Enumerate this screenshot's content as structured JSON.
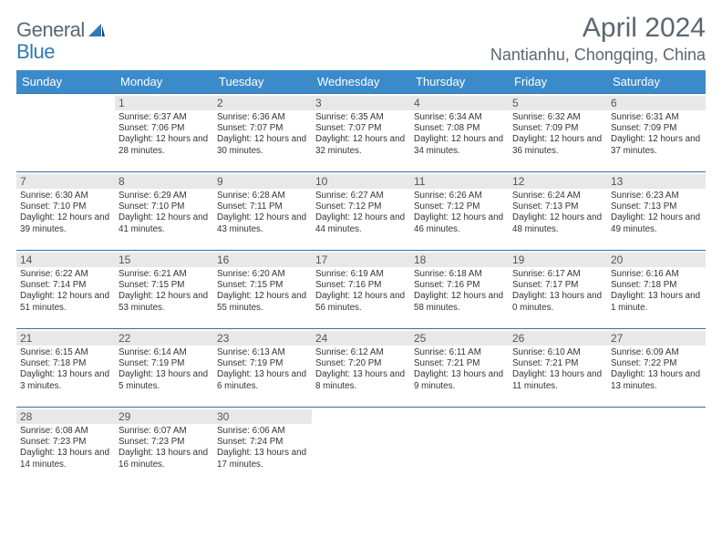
{
  "logo": {
    "text1": "General",
    "text2": "Blue"
  },
  "title": "April 2024",
  "location": "Nantianhu, Chongqing, China",
  "colors": {
    "header_bg": "#3b8bca",
    "header_text": "#ffffff",
    "rule": "#2f6fa8",
    "daynum_bg": "#e8e8e8",
    "text": "#333333",
    "title_text": "#5a6771",
    "accent": "#2f78bc"
  },
  "day_headers": [
    "Sunday",
    "Monday",
    "Tuesday",
    "Wednesday",
    "Thursday",
    "Friday",
    "Saturday"
  ],
  "weeks": [
    [
      {
        "n": "",
        "sr": "",
        "ss": "",
        "dl": ""
      },
      {
        "n": "1",
        "sr": "Sunrise: 6:37 AM",
        "ss": "Sunset: 7:06 PM",
        "dl": "Daylight: 12 hours and 28 minutes."
      },
      {
        "n": "2",
        "sr": "Sunrise: 6:36 AM",
        "ss": "Sunset: 7:07 PM",
        "dl": "Daylight: 12 hours and 30 minutes."
      },
      {
        "n": "3",
        "sr": "Sunrise: 6:35 AM",
        "ss": "Sunset: 7:07 PM",
        "dl": "Daylight: 12 hours and 32 minutes."
      },
      {
        "n": "4",
        "sr": "Sunrise: 6:34 AM",
        "ss": "Sunset: 7:08 PM",
        "dl": "Daylight: 12 hours and 34 minutes."
      },
      {
        "n": "5",
        "sr": "Sunrise: 6:32 AM",
        "ss": "Sunset: 7:09 PM",
        "dl": "Daylight: 12 hours and 36 minutes."
      },
      {
        "n": "6",
        "sr": "Sunrise: 6:31 AM",
        "ss": "Sunset: 7:09 PM",
        "dl": "Daylight: 12 hours and 37 minutes."
      }
    ],
    [
      {
        "n": "7",
        "sr": "Sunrise: 6:30 AM",
        "ss": "Sunset: 7:10 PM",
        "dl": "Daylight: 12 hours and 39 minutes."
      },
      {
        "n": "8",
        "sr": "Sunrise: 6:29 AM",
        "ss": "Sunset: 7:10 PM",
        "dl": "Daylight: 12 hours and 41 minutes."
      },
      {
        "n": "9",
        "sr": "Sunrise: 6:28 AM",
        "ss": "Sunset: 7:11 PM",
        "dl": "Daylight: 12 hours and 43 minutes."
      },
      {
        "n": "10",
        "sr": "Sunrise: 6:27 AM",
        "ss": "Sunset: 7:12 PM",
        "dl": "Daylight: 12 hours and 44 minutes."
      },
      {
        "n": "11",
        "sr": "Sunrise: 6:26 AM",
        "ss": "Sunset: 7:12 PM",
        "dl": "Daylight: 12 hours and 46 minutes."
      },
      {
        "n": "12",
        "sr": "Sunrise: 6:24 AM",
        "ss": "Sunset: 7:13 PM",
        "dl": "Daylight: 12 hours and 48 minutes."
      },
      {
        "n": "13",
        "sr": "Sunrise: 6:23 AM",
        "ss": "Sunset: 7:13 PM",
        "dl": "Daylight: 12 hours and 49 minutes."
      }
    ],
    [
      {
        "n": "14",
        "sr": "Sunrise: 6:22 AM",
        "ss": "Sunset: 7:14 PM",
        "dl": "Daylight: 12 hours and 51 minutes."
      },
      {
        "n": "15",
        "sr": "Sunrise: 6:21 AM",
        "ss": "Sunset: 7:15 PM",
        "dl": "Daylight: 12 hours and 53 minutes."
      },
      {
        "n": "16",
        "sr": "Sunrise: 6:20 AM",
        "ss": "Sunset: 7:15 PM",
        "dl": "Daylight: 12 hours and 55 minutes."
      },
      {
        "n": "17",
        "sr": "Sunrise: 6:19 AM",
        "ss": "Sunset: 7:16 PM",
        "dl": "Daylight: 12 hours and 56 minutes."
      },
      {
        "n": "18",
        "sr": "Sunrise: 6:18 AM",
        "ss": "Sunset: 7:16 PM",
        "dl": "Daylight: 12 hours and 58 minutes."
      },
      {
        "n": "19",
        "sr": "Sunrise: 6:17 AM",
        "ss": "Sunset: 7:17 PM",
        "dl": "Daylight: 13 hours and 0 minutes."
      },
      {
        "n": "20",
        "sr": "Sunrise: 6:16 AM",
        "ss": "Sunset: 7:18 PM",
        "dl": "Daylight: 13 hours and 1 minute."
      }
    ],
    [
      {
        "n": "21",
        "sr": "Sunrise: 6:15 AM",
        "ss": "Sunset: 7:18 PM",
        "dl": "Daylight: 13 hours and 3 minutes."
      },
      {
        "n": "22",
        "sr": "Sunrise: 6:14 AM",
        "ss": "Sunset: 7:19 PM",
        "dl": "Daylight: 13 hours and 5 minutes."
      },
      {
        "n": "23",
        "sr": "Sunrise: 6:13 AM",
        "ss": "Sunset: 7:19 PM",
        "dl": "Daylight: 13 hours and 6 minutes."
      },
      {
        "n": "24",
        "sr": "Sunrise: 6:12 AM",
        "ss": "Sunset: 7:20 PM",
        "dl": "Daylight: 13 hours and 8 minutes."
      },
      {
        "n": "25",
        "sr": "Sunrise: 6:11 AM",
        "ss": "Sunset: 7:21 PM",
        "dl": "Daylight: 13 hours and 9 minutes."
      },
      {
        "n": "26",
        "sr": "Sunrise: 6:10 AM",
        "ss": "Sunset: 7:21 PM",
        "dl": "Daylight: 13 hours and 11 minutes."
      },
      {
        "n": "27",
        "sr": "Sunrise: 6:09 AM",
        "ss": "Sunset: 7:22 PM",
        "dl": "Daylight: 13 hours and 13 minutes."
      }
    ],
    [
      {
        "n": "28",
        "sr": "Sunrise: 6:08 AM",
        "ss": "Sunset: 7:23 PM",
        "dl": "Daylight: 13 hours and 14 minutes."
      },
      {
        "n": "29",
        "sr": "Sunrise: 6:07 AM",
        "ss": "Sunset: 7:23 PM",
        "dl": "Daylight: 13 hours and 16 minutes."
      },
      {
        "n": "30",
        "sr": "Sunrise: 6:06 AM",
        "ss": "Sunset: 7:24 PM",
        "dl": "Daylight: 13 hours and 17 minutes."
      },
      {
        "n": "",
        "sr": "",
        "ss": "",
        "dl": ""
      },
      {
        "n": "",
        "sr": "",
        "ss": "",
        "dl": ""
      },
      {
        "n": "",
        "sr": "",
        "ss": "",
        "dl": ""
      },
      {
        "n": "",
        "sr": "",
        "ss": "",
        "dl": ""
      }
    ]
  ]
}
